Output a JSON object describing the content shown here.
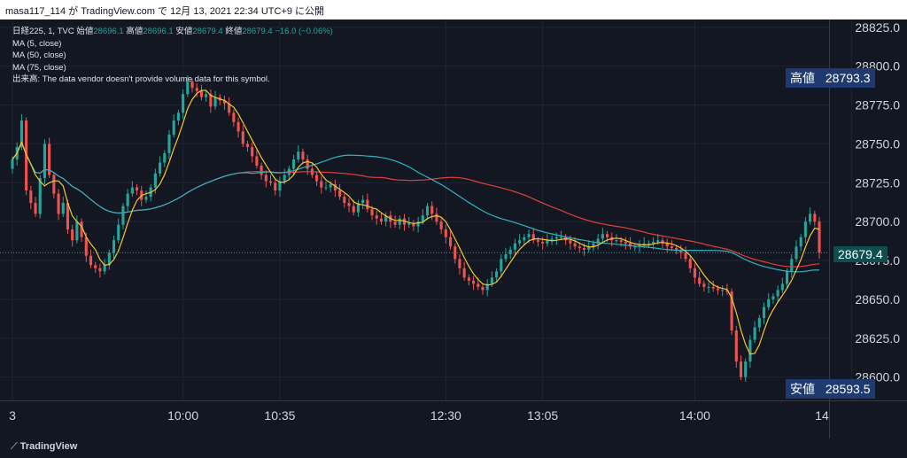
{
  "header": {
    "title": "masa117_114 が TradingView.com で 12月 13, 2021 22:34 UTC+9 に公開"
  },
  "legend": {
    "symbol": "日経225, 1, TVC",
    "open_label": "始値",
    "open": "28696.1",
    "high_label": "高値",
    "high": "28696.1",
    "low_label": "安値",
    "low": "28679.4",
    "close_label": "終値",
    "close": "28679.4",
    "change": "−16.0 (−0.06%)",
    "ma5": "MA (5, close)",
    "ma50": "MA (50, close)",
    "ma75": "MA (75, close)",
    "volume_note": "出来高: The data vendor doesn't provide volume data for this symbol."
  },
  "labels": {
    "high_tag": "高値",
    "high_price": "28793.3",
    "low_tag": "安値",
    "low_price": "28593.5",
    "last_price": "28679.4"
  },
  "footer": {
    "brand": "TradingView"
  },
  "colors": {
    "up": "#26a69a",
    "down": "#ef5350",
    "ma5": "#f7c531",
    "ma50": "#2db4c4",
    "ma75": "#e0403a",
    "label_bg": "#1e3a6e",
    "last_bg": "#0d4f4f"
  },
  "chart_data": {
    "type": "candlestick",
    "ylim": [
      28585,
      28830
    ],
    "yticks": [
      28600,
      28625,
      28650,
      28675,
      28700,
      28725,
      28750,
      28775,
      28800,
      28825
    ],
    "yticklabels": [
      "28600.0",
      "28625.0",
      "28650.0",
      "28675.0",
      "28700.0",
      "28725.0",
      "28750.0",
      "28775.0",
      "28800.0",
      "28825.0"
    ],
    "xticks": [
      {
        "i": 0,
        "label": "3"
      },
      {
        "i": 37,
        "label": "10:00"
      },
      {
        "i": 58,
        "label": "10:35"
      },
      {
        "i": 94,
        "label": "12:30"
      },
      {
        "i": 115,
        "label": "13:05"
      },
      {
        "i": 148,
        "label": "14:00"
      },
      {
        "i": 182,
        "label": "14"
      }
    ],
    "close": [
      28740,
      28748,
      28765,
      28720,
      28712,
      28705,
      28728,
      28750,
      28730,
      28718,
      28705,
      28712,
      28695,
      28688,
      28700,
      28690,
      28678,
      28672,
      28670,
      28668,
      28672,
      28680,
      28688,
      28698,
      28710,
      28718,
      28722,
      28720,
      28714,
      28716,
      28722,
      28731,
      28738,
      28744,
      28756,
      28765,
      28770,
      28782,
      28790,
      28786,
      28784,
      28780,
      28782,
      28774,
      28780,
      28778,
      28776,
      28770,
      28764,
      28758,
      28750,
      28748,
      28742,
      28736,
      28730,
      28726,
      28725,
      28720,
      28726,
      28730,
      28734,
      28740,
      28745,
      28740,
      28734,
      28730,
      28726,
      28722,
      28722,
      28724,
      28720,
      28716,
      28712,
      28710,
      28706,
      28712,
      28714,
      28708,
      28704,
      28702,
      28700,
      28704,
      28700,
      28698,
      28702,
      28698,
      28699,
      28697,
      28700,
      28704,
      28710,
      28705,
      28700,
      28695,
      28690,
      28684,
      28676,
      28670,
      28664,
      28662,
      28660,
      28658,
      28656,
      28660,
      28664,
      28668,
      28676,
      28679,
      28682,
      28686,
      28688,
      28690,
      28692,
      28688,
      28687,
      28686,
      28688,
      28689,
      28690,
      28690,
      28688,
      28686,
      28684,
      28683,
      28682,
      28684,
      28686,
      28689,
      28692,
      28690,
      28688,
      28688,
      28687,
      28686,
      28684,
      28684,
      28685,
      28686,
      28686,
      28687,
      28688,
      28686,
      28684,
      28683,
      28682,
      28680,
      28676,
      28670,
      28664,
      28660,
      28658,
      28658,
      28657,
      28656,
      28656,
      28655,
      28630,
      28610,
      28600,
      28610,
      28624,
      28632,
      28638,
      28645,
      28650,
      28652,
      28656,
      28660,
      28668,
      28676,
      28684,
      28690,
      28700,
      28705,
      28700,
      28680
    ],
    "ohlc_note": "approximate 1-minute candles read from chart; high/low extend a few points beyond open/close",
    "ma5": "5-period moving average of close",
    "ma50": "50-period moving average of close",
    "ma75": "75-period moving average of close"
  }
}
